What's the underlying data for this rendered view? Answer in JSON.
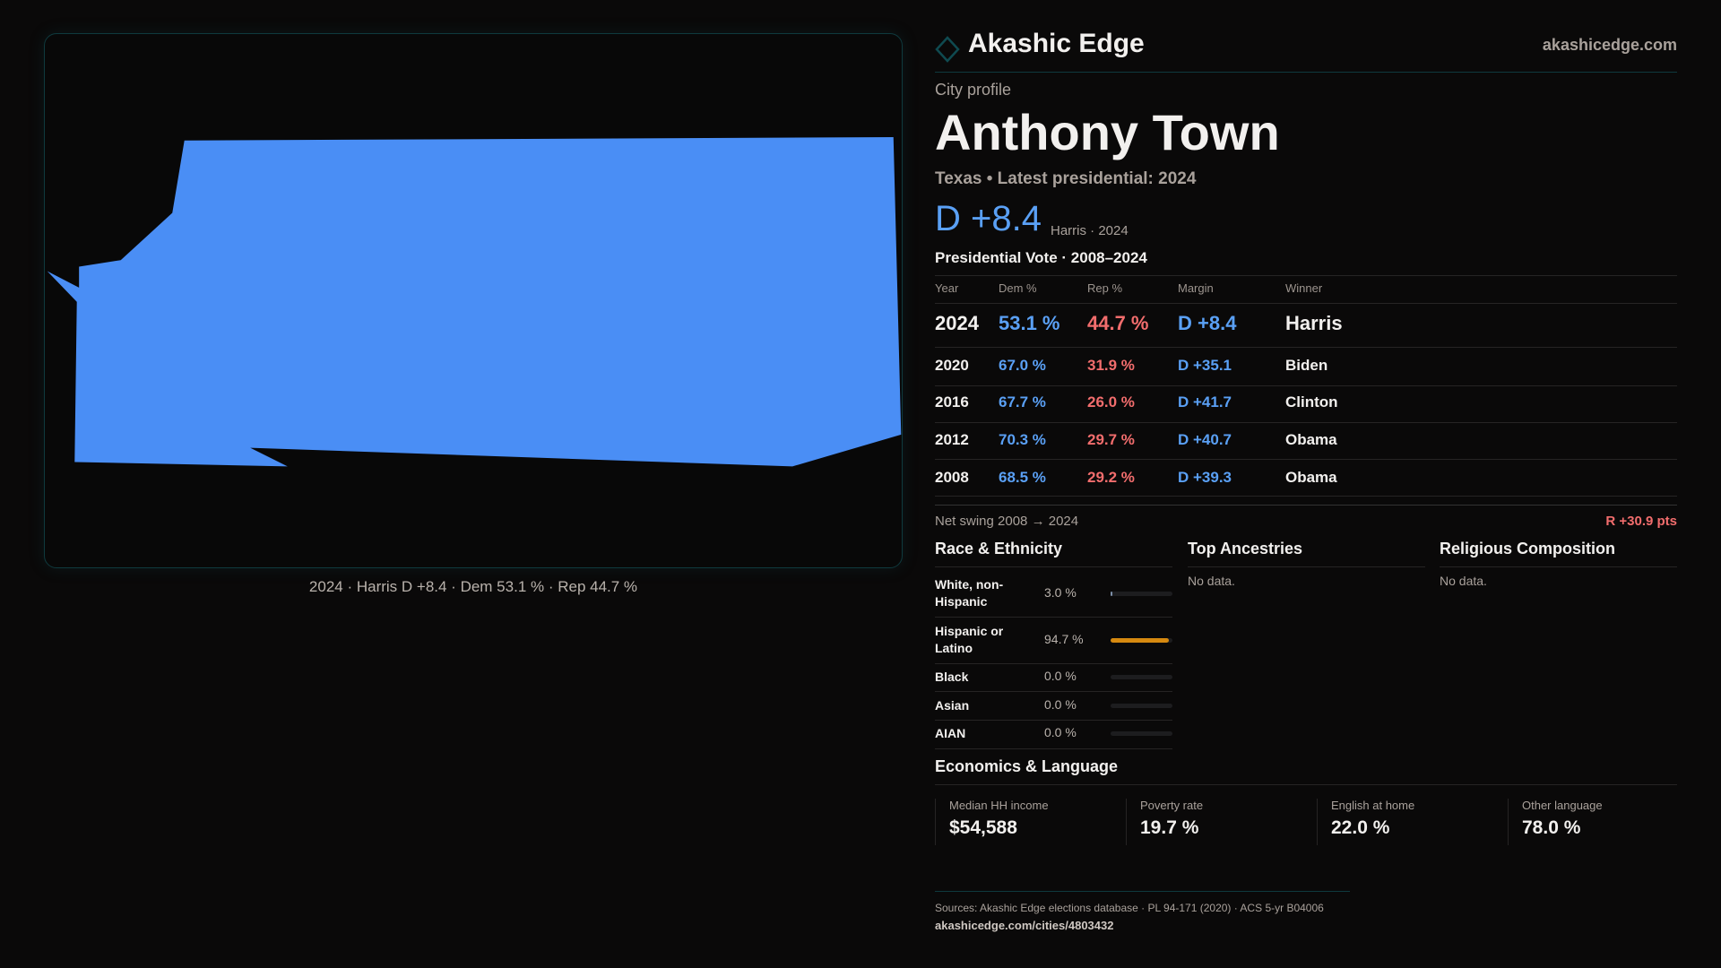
{
  "map": {
    "caption": "2024 · Harris D +8.4 · Dem 53.1 % · Rep 44.7 %",
    "fill_color": "#4a8ef5"
  },
  "header": {
    "brand": "Akashic Edge",
    "site": "akashicedge.com",
    "logo_icon": "diamond-icon"
  },
  "profile": {
    "kicker": "City profile",
    "title": "Anthony Town",
    "subtitle": "Texas • Latest presidential: 2024",
    "margin": "D +8.4",
    "margin_note": "Harris · 2024"
  },
  "vote": {
    "title": "Presidential Vote · 2008–2024",
    "columns": [
      "Year",
      "Dem %",
      "Rep %",
      "Margin",
      "Winner"
    ],
    "rows": [
      {
        "year": "2024",
        "dem": "53.1 %",
        "rep": "44.7 %",
        "margin": "D +8.4",
        "winner": "Harris"
      },
      {
        "year": "2020",
        "dem": "67.0 %",
        "rep": "31.9 %",
        "margin": "D +35.1",
        "winner": "Biden"
      },
      {
        "year": "2016",
        "dem": "67.7 %",
        "rep": "26.0 %",
        "margin": "D +41.7",
        "winner": "Clinton"
      },
      {
        "year": "2012",
        "dem": "70.3 %",
        "rep": "29.7 %",
        "margin": "D +40.7",
        "winner": "Obama"
      },
      {
        "year": "2008",
        "dem": "68.5 %",
        "rep": "29.2 %",
        "margin": "D +39.3",
        "winner": "Obama"
      }
    ],
    "swing_label": "Net swing 2008 → 2024",
    "swing_value": "R +30.9 pts"
  },
  "race": {
    "title": "Race & Ethnicity",
    "rows": [
      {
        "label": "White, non-Hispanic",
        "value": "3.0 %",
        "pct": 3.0,
        "color": "#7d8fa8"
      },
      {
        "label": "Hispanic or Latino",
        "value": "94.7 %",
        "pct": 94.7,
        "color": "#d68910"
      },
      {
        "label": "Black",
        "value": "0.0 %",
        "pct": 0,
        "color": "#7d8fa8"
      },
      {
        "label": "Asian",
        "value": "0.0 %",
        "pct": 0,
        "color": "#7d8fa8"
      },
      {
        "label": "AIAN",
        "value": "0.0 %",
        "pct": 0,
        "color": "#7d8fa8"
      }
    ]
  },
  "ancestries": {
    "title": "Top Ancestries",
    "empty": "No data."
  },
  "religion": {
    "title": "Religious Composition",
    "empty": "No data."
  },
  "econ": {
    "title": "Economics & Language",
    "stats": [
      {
        "label": "Median HH income",
        "value": "$54,588"
      },
      {
        "label": "Poverty rate",
        "value": "19.7 %"
      },
      {
        "label": "English at home",
        "value": "22.0 %"
      },
      {
        "label": "Other language",
        "value": "78.0 %"
      }
    ]
  },
  "footer": {
    "sources": "Sources: Akashic Edge elections database · PL 94-171 (2020) · ACS 5-yr B04006",
    "link": "akashicedge.com/cities/4803432"
  }
}
